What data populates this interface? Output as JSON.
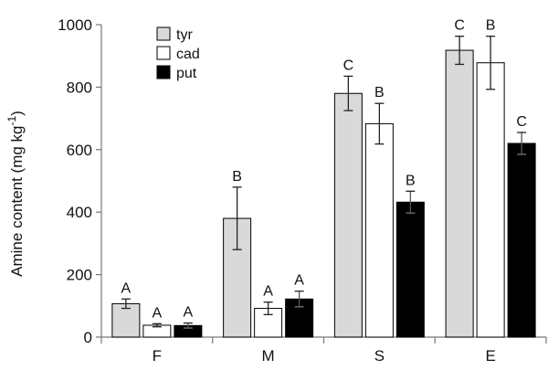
{
  "chart_data": {
    "type": "bar",
    "categories": [
      "F",
      "M",
      "S",
      "E"
    ],
    "series": [
      {
        "name": "tyr",
        "color": "#d9d9d9",
        "values": [
          107,
          380,
          780,
          918
        ],
        "errors": [
          15,
          100,
          55,
          45
        ],
        "labels": [
          "A",
          "B",
          "C",
          "C"
        ]
      },
      {
        "name": "cad",
        "color": "#ffffff",
        "values": [
          38,
          92,
          683,
          878
        ],
        "errors": [
          5,
          20,
          65,
          85
        ],
        "labels": [
          "A",
          "A",
          "B",
          "B"
        ]
      },
      {
        "name": "put",
        "color": "#000000",
        "values": [
          37,
          122,
          432,
          620
        ],
        "errors": [
          8,
          25,
          35,
          35
        ],
        "labels": [
          "A",
          "A",
          "B",
          "C"
        ]
      }
    ],
    "ylabel_main": "Amine content (mg kg",
    "ylabel_sup": "-1",
    "ylabel_close": ")",
    "ylim": [
      0,
      1000
    ],
    "yticks": [
      "0",
      "200",
      "400",
      "600",
      "800",
      "1000"
    ],
    "legend": "top-left",
    "grid": false
  }
}
